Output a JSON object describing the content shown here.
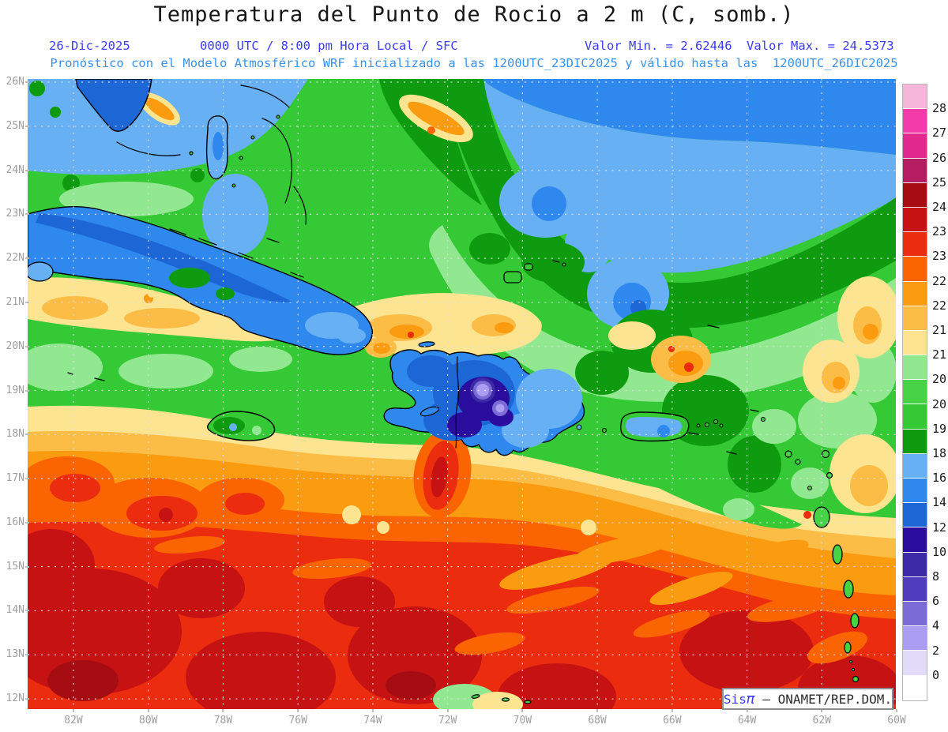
{
  "header": {
    "title": "Temperatura del Punto de Rocio a 2 m (C, somb.)",
    "date": "26-Dic-2025",
    "time": "0000 UTC / 8:00 pm Hora Local / SFC",
    "min": "Valor Min. = 2.62446",
    "max": "Valor Max. = 24.5373",
    "forecast": "Pronóstico con el Modelo Atmosférico WRF inicializado a las 1200UTC_23DIC2025 y válido hasta las  1200UTC_26DIC2025"
  },
  "axes": {
    "lat": [
      "26N",
      "25N",
      "24N",
      "23N",
      "22N",
      "21N",
      "20N",
      "19N",
      "18N",
      "17N",
      "16N",
      "15N",
      "14N",
      "13N",
      "12N"
    ],
    "lon": [
      "82W",
      "80W",
      "78W",
      "76W",
      "74W",
      "72W",
      "70W",
      "68W",
      "66W",
      "64W",
      "62W",
      "60W"
    ]
  },
  "colorbar": {
    "units": "C",
    "cells": [
      {
        "color": "#f6b6d9",
        "label": "28"
      },
      {
        "color": "#f13ba8",
        "label": "27"
      },
      {
        "color": "#e22a8e",
        "label": "26"
      },
      {
        "color": "#b51d63",
        "label": "25"
      },
      {
        "color": "#a50d12",
        "label": "24.5"
      },
      {
        "color": "#c61212",
        "label": "23.5"
      },
      {
        "color": "#eb2c0f",
        "label": "23"
      },
      {
        "color": "#fa6401",
        "label": "22.5"
      },
      {
        "color": "#fb9b10",
        "label": "22"
      },
      {
        "color": "#fcbd47",
        "label": "21.5"
      },
      {
        "color": "#fde491",
        "label": "21"
      },
      {
        "color": "#91e891",
        "label": "20.5"
      },
      {
        "color": "#46d446",
        "label": "20"
      },
      {
        "color": "#35c935",
        "label": "19"
      },
      {
        "color": "#0f9b0f",
        "label": "18"
      },
      {
        "color": "#68b0f4",
        "label": "16"
      },
      {
        "color": "#2f88ee",
        "label": "14"
      },
      {
        "color": "#1d66d6",
        "label": "12"
      },
      {
        "color": "#2a0d9d",
        "label": "10"
      },
      {
        "color": "#3c2aa6",
        "label": "8"
      },
      {
        "color": "#4f3dbd",
        "label": "6"
      },
      {
        "color": "#7a6bd6",
        "label": "4"
      },
      {
        "color": "#ab9df1",
        "label": "2"
      },
      {
        "color": "#e2dcf9",
        "label": "0"
      },
      {
        "color": "#ffffff",
        "label": null
      }
    ]
  },
  "watermark": {
    "brand_prefix": "Sis",
    "brand_symbol": "π",
    "separator": " – ",
    "org": "ONAMET/REP.DOM."
  }
}
